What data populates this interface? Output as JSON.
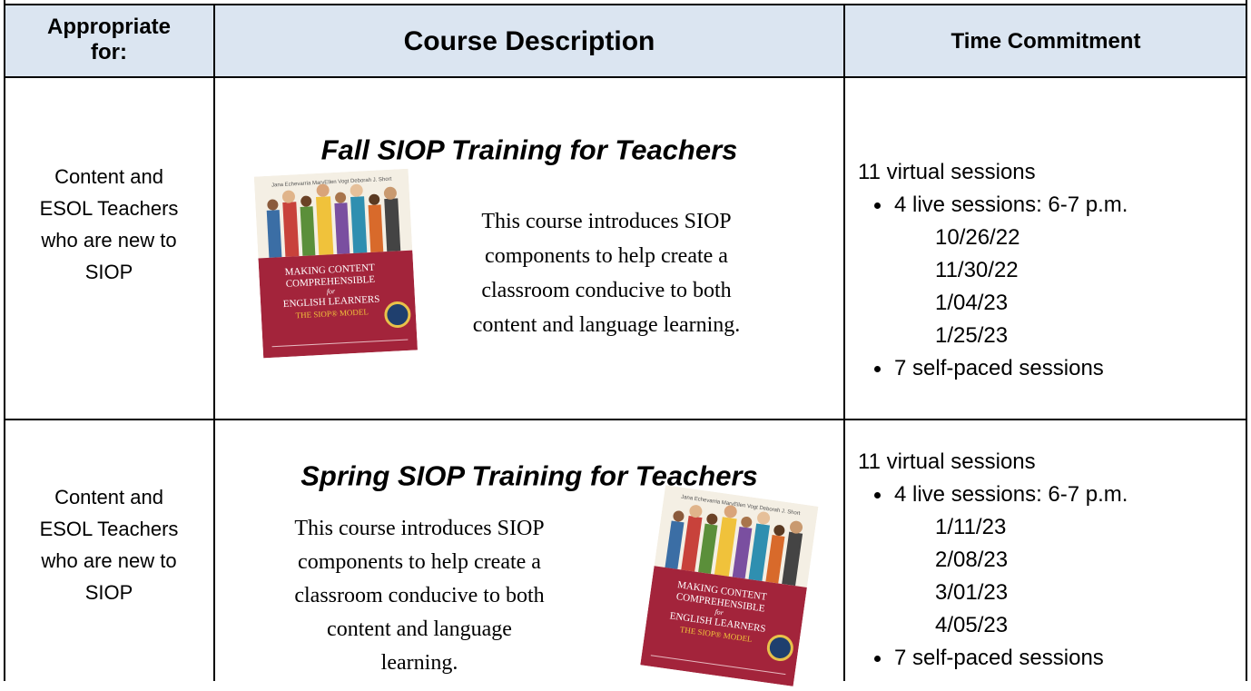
{
  "header": {
    "appropriate_for": [
      "Appropriate",
      "for:"
    ],
    "course_description": "Course Description",
    "time_commitment": "Time Commitment"
  },
  "book": {
    "authors": "Jana Echevarria   MaryEllen Vogt   Deborah J. Short",
    "title_lines": [
      "MAKING CONTENT",
      "COMPREHENSIBLE",
      "for",
      "ENGLISH LEARNERS"
    ],
    "model": "THE SIOP® MODEL"
  },
  "rows": [
    {
      "audience": [
        "Content and",
        "ESOL Teachers",
        "who are new to",
        "SIOP"
      ],
      "course_title": "Fall SIOP Training for Teachers",
      "description": [
        "This course introduces SIOP",
        "components to help create a",
        "classroom conducive to both",
        "content and language learning."
      ],
      "time": {
        "intro": "11 virtual sessions",
        "live": "4 live sessions: 6-7 p.m.",
        "dates": [
          "10/26/22",
          "11/30/22",
          "1/04/23",
          "1/25/23"
        ],
        "self_paced": "7 self-paced sessions"
      }
    },
    {
      "audience": [
        "Content and",
        "ESOL Teachers",
        "who are new to",
        "SIOP"
      ],
      "course_title": "Spring SIOP Training for Teachers",
      "description": [
        "This course introduces SIOP",
        "components to help create a",
        "classroom conducive to both",
        "content and language",
        "learning."
      ],
      "time": {
        "intro": "11 virtual sessions",
        "live": "4 live sessions: 6-7 p.m.",
        "dates": [
          "1/11/23",
          "2/08/23",
          "3/01/23",
          "4/05/23"
        ],
        "self_paced": "7 self-paced sessions"
      }
    }
  ]
}
